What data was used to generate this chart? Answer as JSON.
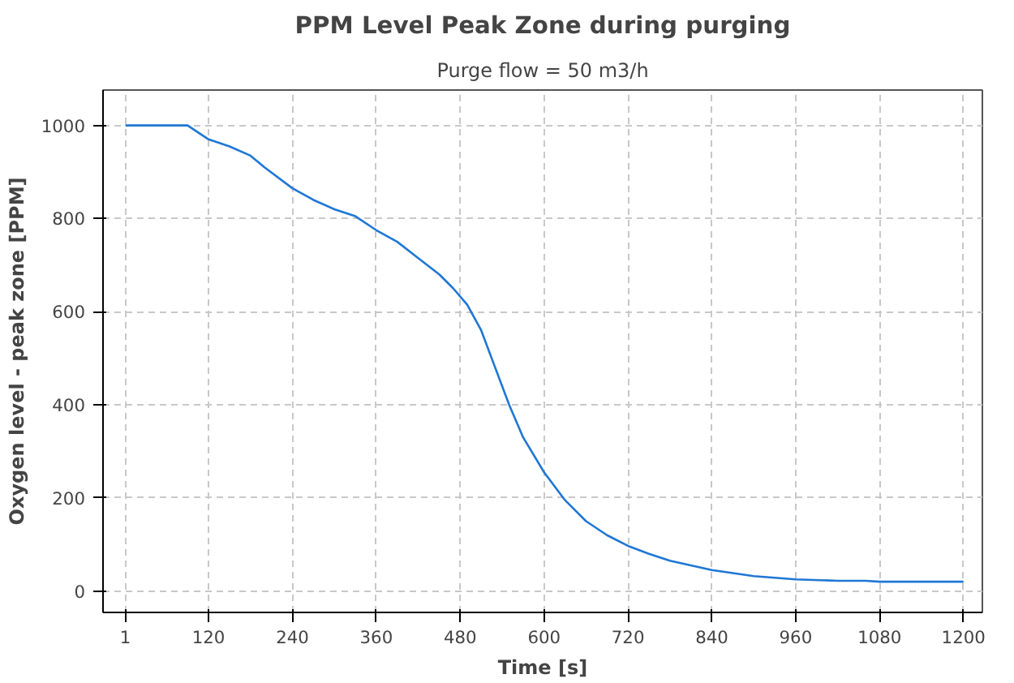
{
  "chart_data": {
    "type": "line",
    "title": "PPM Level Peak Zone during purging",
    "subtitle": "Purge flow = 50 m3/h",
    "xlabel": "Time [s]",
    "ylabel": "Oxygen level - peak zone [PPM]",
    "x": [
      1,
      60,
      90,
      100,
      120,
      150,
      180,
      200,
      240,
      270,
      300,
      330,
      360,
      390,
      420,
      450,
      470,
      490,
      510,
      530,
      550,
      570,
      600,
      630,
      660,
      690,
      720,
      750,
      780,
      840,
      900,
      960,
      1020,
      1060,
      1080,
      1140,
      1200
    ],
    "series": [
      {
        "color": "#1f77d4",
        "values": [
          1000,
          1000,
          1000,
          990,
          970,
          955,
          935,
          910,
          865,
          840,
          820,
          805,
          775,
          750,
          715,
          680,
          650,
          615,
          560,
          480,
          400,
          330,
          255,
          195,
          150,
          120,
          97,
          80,
          65,
          45,
          32,
          25,
          22,
          22,
          20,
          20,
          20
        ]
      }
    ],
    "xlim": [
      -31,
      1227
    ],
    "ylim": [
      -46,
      1076
    ],
    "xticks": [
      1,
      120,
      240,
      360,
      480,
      600,
      720,
      840,
      960,
      1080,
      1200
    ],
    "yticks": [
      0,
      200,
      400,
      600,
      800,
      1000
    ],
    "grid": true,
    "line_style": "solid"
  }
}
